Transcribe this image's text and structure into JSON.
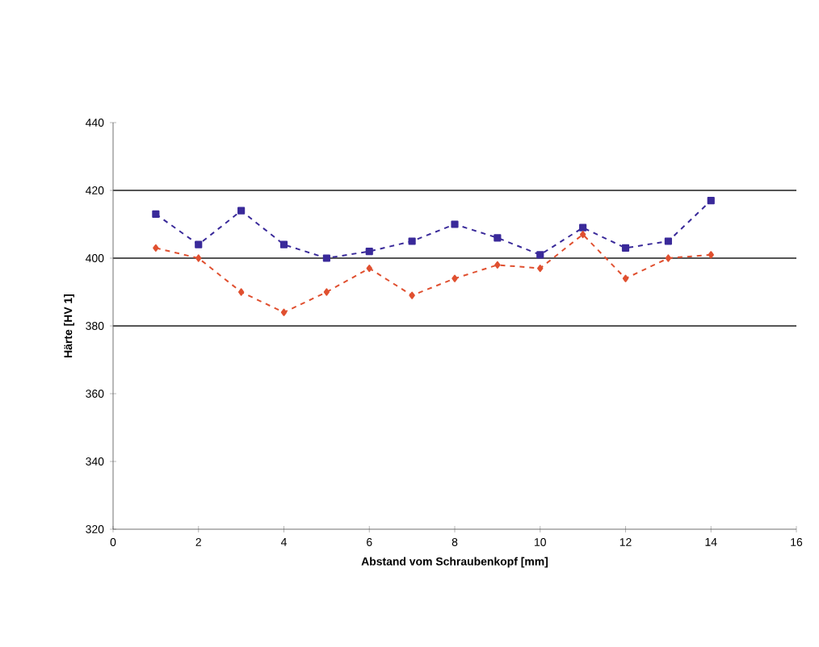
{
  "chart_data": {
    "type": "line",
    "xlabel": "Abstand vom Schraubenkopf [mm]",
    "ylabel": "Härte [HV 1]",
    "x": [
      1,
      2,
      3,
      4,
      5,
      6,
      7,
      8,
      9,
      10,
      11,
      12,
      13,
      14
    ],
    "series": [
      {
        "color": "#3a2a9a",
        "marker": "square",
        "values": [
          413,
          404,
          414,
          404,
          400,
          402,
          405,
          410,
          406,
          401,
          409,
          403,
          405,
          417
        ]
      },
      {
        "color": "#e05030",
        "marker": "diamond",
        "values": [
          403,
          400,
          390,
          384,
          390,
          397,
          389,
          394,
          398,
          397,
          407,
          394,
          400,
          401
        ]
      }
    ],
    "xlim": [
      0,
      16
    ],
    "xticks": [
      0,
      2,
      4,
      6,
      8,
      10,
      12,
      14,
      16
    ],
    "ylim": [
      320,
      440
    ],
    "yticks": [
      320,
      340,
      360,
      380,
      400,
      420,
      440
    ],
    "ref_lines": [
      {
        "axis": "y",
        "value": 380,
        "color": "#555555"
      },
      {
        "axis": "y",
        "value": 400,
        "color": "#555555"
      },
      {
        "axis": "y",
        "value": 420,
        "color": "#555555"
      }
    ],
    "line_style": "dashed"
  }
}
